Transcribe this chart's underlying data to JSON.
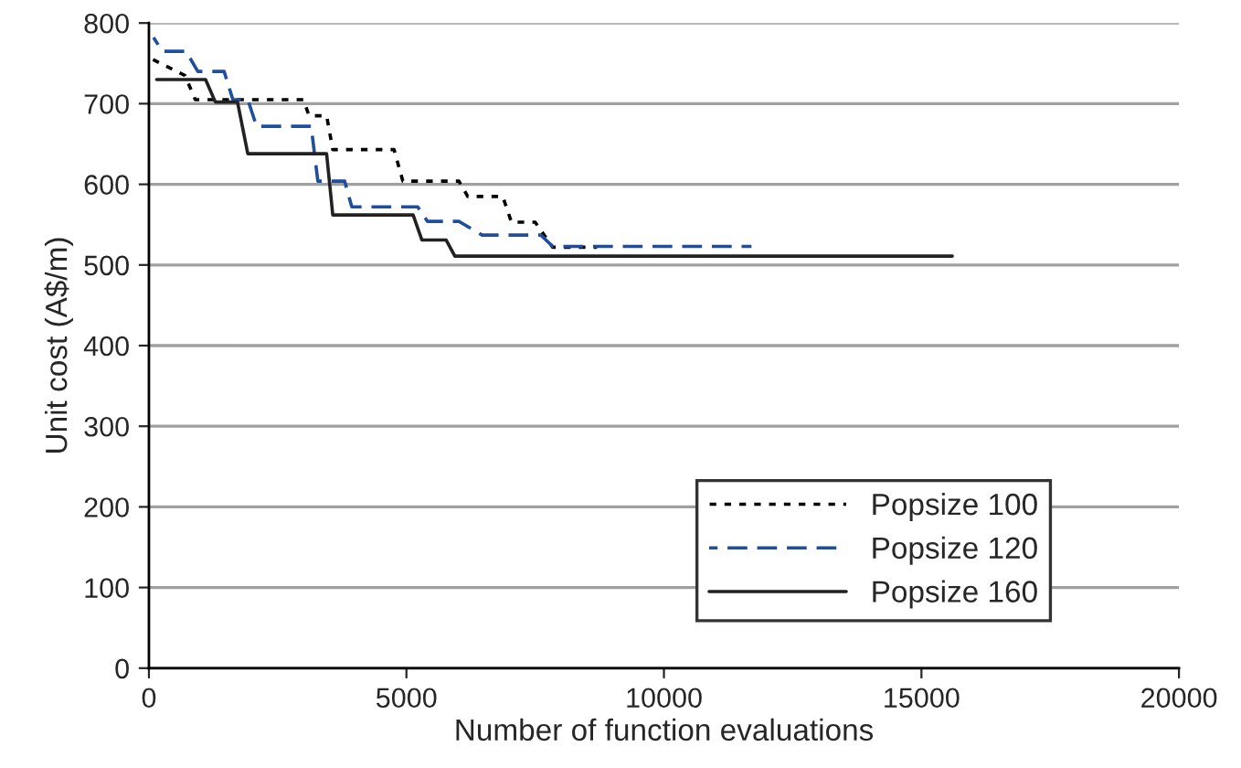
{
  "chart_data": {
    "type": "line",
    "xlabel": "Number of function evaluations",
    "ylabel": "Unit cost (A$/m)",
    "xlim": [
      0,
      20000
    ],
    "ylim": [
      0,
      800
    ],
    "xticks": [
      0,
      5000,
      10000,
      15000,
      20000
    ],
    "yticks": [
      0,
      100,
      200,
      300,
      400,
      500,
      600,
      700,
      800
    ],
    "grid": "y",
    "legend": "bottom right",
    "series": [
      {
        "name": "Popsize 100",
        "color": "#000000",
        "line_style": "dotted",
        "x": [
          70,
          700,
          900,
          3000,
          3110,
          3450,
          3570,
          4760,
          4930,
          6020,
          6190,
          6870,
          7040,
          7500,
          7840,
          8700
        ],
        "values": [
          755,
          735,
          705,
          705,
          685,
          685,
          643,
          643,
          604,
          604,
          585,
          585,
          553,
          553,
          522,
          522
        ]
      },
      {
        "name": "Popsize 120",
        "color": "#1f4e9c",
        "line_style": "dashed",
        "x": [
          90,
          260,
          720,
          950,
          1460,
          1630,
          1920,
          2090,
          3150,
          3280,
          3800,
          3940,
          5220,
          5410,
          6020,
          6470,
          7610,
          7840,
          11700
        ],
        "values": [
          782,
          765,
          765,
          740,
          740,
          705,
          705,
          672,
          672,
          604,
          604,
          572,
          572,
          554,
          554,
          537,
          537,
          523,
          523
        ]
      },
      {
        "name": "Popsize 160",
        "color": "#222222",
        "line_style": "solid",
        "x": [
          150,
          1100,
          1290,
          1720,
          1920,
          3450,
          3570,
          5130,
          5300,
          5770,
          5940,
          15600
        ],
        "values": [
          730,
          730,
          702,
          702,
          638,
          638,
          562,
          562,
          531,
          531,
          511,
          511
        ]
      }
    ]
  }
}
